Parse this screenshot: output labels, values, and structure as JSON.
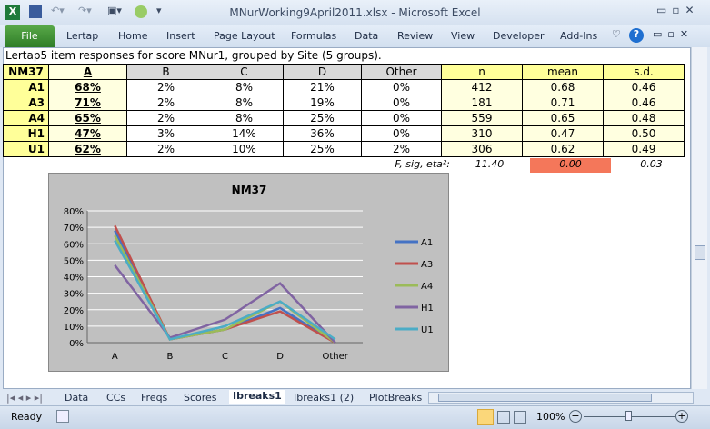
{
  "window": {
    "title": "MNurWorking9April2011.xlsx - Microsoft Excel"
  },
  "ribbon": {
    "file": "File",
    "tabs": [
      "Lertap",
      "Home",
      "Insert",
      "Page Layout",
      "Formulas",
      "Data",
      "Review",
      "View",
      "Developer",
      "Add-Ins"
    ]
  },
  "sheet": {
    "caption": "Lertap5 item responses for score MNur1, grouped by Site (5 groups).",
    "headers": [
      "NM37",
      "A",
      "B",
      "C",
      "D",
      "Other",
      "n",
      "mean",
      "s.d."
    ],
    "rows": [
      [
        "A1",
        "68%",
        "2%",
        "8%",
        "21%",
        "0%",
        "412",
        "0.68",
        "0.46"
      ],
      [
        "A3",
        "71%",
        "2%",
        "8%",
        "19%",
        "0%",
        "181",
        "0.71",
        "0.46"
      ],
      [
        "A4",
        "65%",
        "2%",
        "8%",
        "25%",
        "0%",
        "559",
        "0.65",
        "0.48"
      ],
      [
        "H1",
        "47%",
        "3%",
        "14%",
        "36%",
        "0%",
        "310",
        "0.47",
        "0.50"
      ],
      [
        "U1",
        "62%",
        "2%",
        "10%",
        "25%",
        "2%",
        "306",
        "0.62",
        "0.49"
      ]
    ],
    "stats_label": "F, sig, eta²:",
    "stats": [
      "11.40",
      "0.00",
      "0.03"
    ],
    "sig_color": "#f4775a"
  },
  "chart_data": {
    "type": "line",
    "title": "NM37",
    "categories": [
      "A",
      "B",
      "C",
      "D",
      "Other"
    ],
    "ylim": [
      0,
      80
    ],
    "yticks": [
      "0%",
      "10%",
      "20%",
      "30%",
      "40%",
      "50%",
      "60%",
      "70%",
      "80%"
    ],
    "grid": true,
    "legend": "right",
    "series": [
      {
        "name": "A1",
        "values": [
          68,
          2,
          8,
          21,
          0
        ],
        "color": "#4472c4"
      },
      {
        "name": "A3",
        "values": [
          71,
          2,
          8,
          19,
          0
        ],
        "color": "#c0504d"
      },
      {
        "name": "A4",
        "values": [
          65,
          2,
          8,
          25,
          0
        ],
        "color": "#9bbb59"
      },
      {
        "name": "H1",
        "values": [
          47,
          3,
          14,
          36,
          0
        ],
        "color": "#8064a2"
      },
      {
        "name": "U1",
        "values": [
          62,
          2,
          10,
          25,
          2
        ],
        "color": "#4bacc6"
      }
    ]
  },
  "sheet_tabs": {
    "tabs": [
      "Data",
      "CCs",
      "Freqs",
      "Scores",
      "Ibreaks1",
      "Ibreaks1 (2)",
      "PlotBreaks"
    ],
    "active": "Ibreaks1"
  },
  "status": {
    "ready": "Ready",
    "zoom": "100%"
  }
}
